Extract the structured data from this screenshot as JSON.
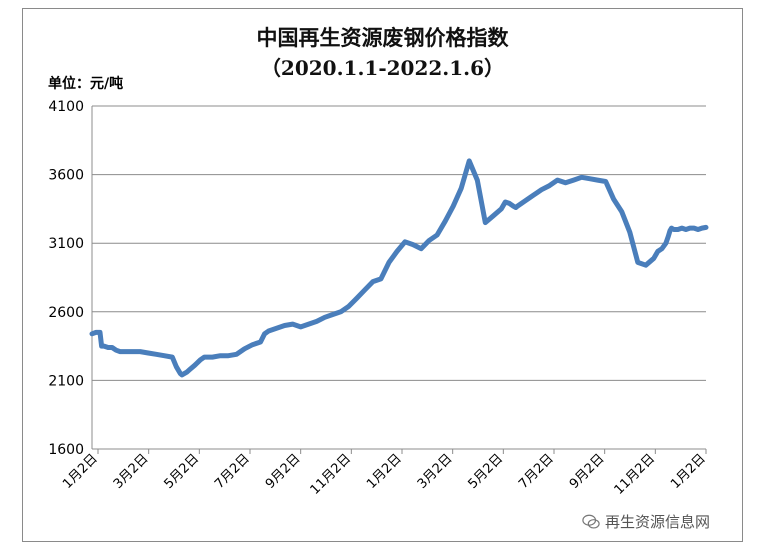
{
  "chart_data": {
    "type": "line",
    "title": "中国再生资源废钢价格指数",
    "subtitle": "（2020.1.1-2022.1.6）",
    "unit_label": "单位：元/吨",
    "ylim": [
      1600,
      4100
    ],
    "y_ticks": [
      "1600",
      "2100",
      "2600",
      "3100",
      "3600",
      "4100"
    ],
    "x_ticks": [
      "1月2日",
      "3月2日",
      "5月2日",
      "7月2日",
      "9月2日",
      "11月2日",
      "1月2日",
      "3月2日",
      "5月2日",
      "7月2日",
      "9月2日",
      "11月2日",
      "1月2日"
    ],
    "grid": true,
    "series": [
      {
        "color": "#4a7ebb",
        "x": [
          0,
          5,
          10,
          12,
          15,
          20,
          25,
          30,
          35,
          40,
          50,
          60,
          70,
          80,
          90,
          100,
          105,
          110,
          112,
          118,
          122,
          128,
          135,
          140,
          150,
          160,
          170,
          180,
          190,
          200,
          210,
          215,
          220,
          230,
          240,
          250,
          255,
          260,
          270,
          280,
          290,
          300,
          310,
          320,
          330,
          340,
          350,
          360,
          370,
          380,
          390,
          400,
          410,
          420,
          430,
          440,
          450,
          460,
          470,
          480,
          490,
          500,
          510,
          515,
          520,
          525,
          528,
          530,
          535,
          540,
          545,
          550,
          555,
          560,
          570,
          580,
          590,
          600,
          610,
          620,
          630,
          640,
          650,
          660,
          670,
          680,
          690,
          700,
          705,
          710,
          715,
          718,
          720,
          722,
          725,
          730,
          735,
          740,
          745,
          750,
          755,
          760,
          765
        ],
        "values": [
          2440,
          2450,
          2450,
          2350,
          2350,
          2340,
          2340,
          2320,
          2310,
          2310,
          2310,
          2310,
          2300,
          2290,
          2280,
          2270,
          2200,
          2150,
          2140,
          2160,
          2180,
          2210,
          2250,
          2270,
          2270,
          2280,
          2280,
          2290,
          2330,
          2360,
          2380,
          2440,
          2460,
          2480,
          2500,
          2510,
          2500,
          2490,
          2510,
          2530,
          2560,
          2580,
          2600,
          2640,
          2700,
          2760,
          2820,
          2840,
          2960,
          3040,
          3110,
          3090,
          3060,
          3120,
          3160,
          3260,
          3370,
          3500,
          3700,
          3560,
          3250,
          3300,
          3350,
          3400,
          3390,
          3370,
          3360,
          3370,
          3390,
          3410,
          3430,
          3450,
          3470,
          3490,
          3520,
          3560,
          3540,
          3560,
          3580,
          3570,
          3560,
          3550,
          3420,
          3330,
          3180,
          2960,
          2940,
          2990,
          3040,
          3060,
          3100,
          3150,
          3190,
          3210,
          3200,
          3200,
          3210,
          3200,
          3210,
          3210,
          3200,
          3210,
          3215
        ]
      }
    ],
    "watermark": "再生资源信息网"
  }
}
